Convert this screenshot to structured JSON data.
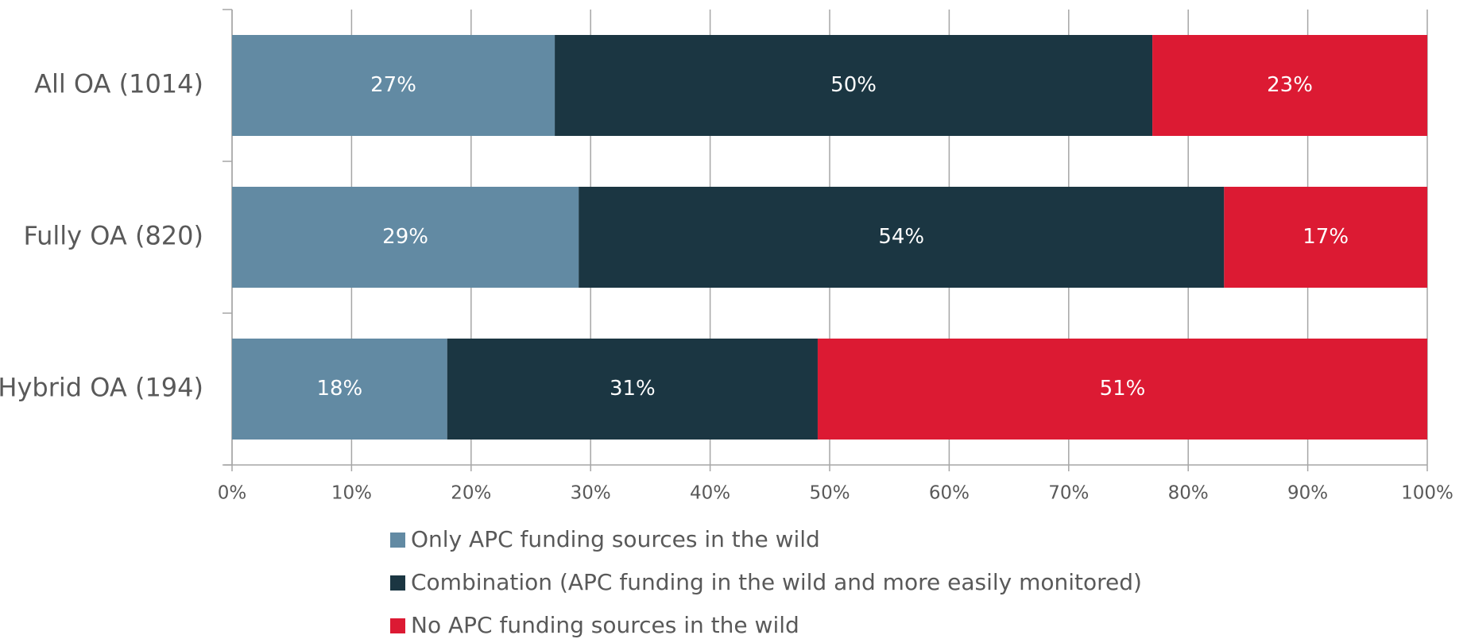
{
  "chart_data": {
    "type": "stacked_bar_horizontal",
    "categories": [
      "All OA (1014)",
      "Fully OA (820)",
      "Hybrid OA (194)"
    ],
    "series": [
      {
        "name": "Only APC funding sources in the wild",
        "color": "#628aa3",
        "values": [
          27,
          29,
          18
        ],
        "value_labels": [
          "27%",
          "29%",
          "18%"
        ]
      },
      {
        "name": "Combination (APC funding in the wild and more easily monitored)",
        "color": "#1b3642",
        "values": [
          50,
          54,
          31
        ],
        "value_labels": [
          "50%",
          "54%",
          "31%"
        ]
      },
      {
        "name": "No APC funding sources in the wild",
        "color": "#dc1a33",
        "values": [
          23,
          17,
          51
        ],
        "value_labels": [
          "23%",
          "17%",
          "51%"
        ]
      }
    ],
    "xlim": [
      0,
      100
    ],
    "xticks": [
      {
        "value": 0,
        "label": "0%"
      },
      {
        "value": 10,
        "label": "10%"
      },
      {
        "value": 20,
        "label": "20%"
      },
      {
        "value": 30,
        "label": "30%"
      },
      {
        "value": 40,
        "label": "40%"
      },
      {
        "value": 50,
        "label": "50%"
      },
      {
        "value": 60,
        "label": "60%"
      },
      {
        "value": 70,
        "label": "70%"
      },
      {
        "value": 80,
        "label": "80%"
      },
      {
        "value": 90,
        "label": "90%"
      },
      {
        "value": 100,
        "label": "100%"
      }
    ],
    "grid": true,
    "legend": "bottom"
  }
}
